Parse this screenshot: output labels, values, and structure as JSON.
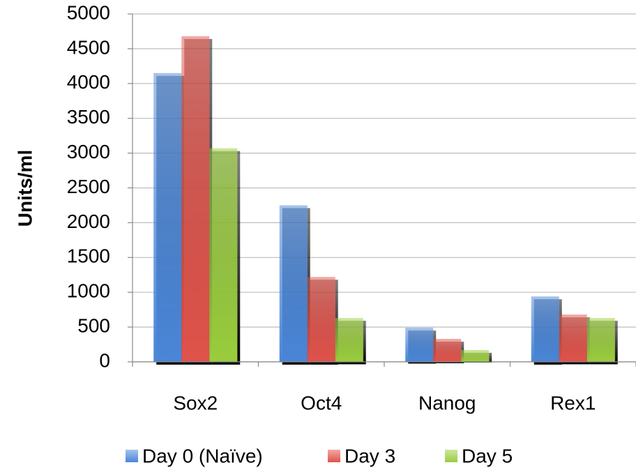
{
  "chart_data": {
    "type": "bar",
    "y_label": "Units/ml",
    "categories": [
      "Sox2",
      "Oct4",
      "Nanog",
      "Rex1"
    ],
    "series": [
      {
        "name": "Day 0 (Naïve)",
        "color": "#4a86d8",
        "values": [
          4150,
          2250,
          490,
          940
        ]
      },
      {
        "name": "Day 3",
        "color": "#e0534b",
        "values": [
          4680,
          1220,
          330,
          680
        ]
      },
      {
        "name": "Day 5",
        "color": "#9acd3e",
        "values": [
          3070,
          630,
          170,
          630
        ]
      }
    ],
    "ylim": [
      0,
      5000
    ],
    "yticks": [
      0,
      500,
      1000,
      1500,
      2000,
      2500,
      3000,
      3500,
      4000,
      4500,
      5000
    ],
    "grid": true
  }
}
